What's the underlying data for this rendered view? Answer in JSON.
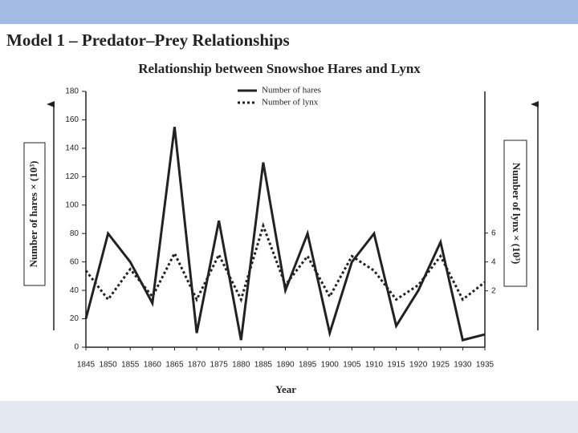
{
  "header": {
    "title": "Model 1 – Predator–Prey Relationships"
  },
  "chart_data": {
    "type": "line",
    "title": "Relationship between Snowshoe Hares and Lynx",
    "x_label": "Year",
    "y_label": "Number of hares × (10³)",
    "y2_label": "Number of lynx × (10³)",
    "x": [
      1845,
      1850,
      1855,
      1860,
      1865,
      1870,
      1875,
      1880,
      1885,
      1890,
      1895,
      1900,
      1905,
      1910,
      1915,
      1920,
      1925,
      1930,
      1935
    ],
    "series": [
      {
        "name": "Number of hares",
        "color": "#222222",
        "dash": "solid",
        "values": [
          20,
          80,
          60,
          31,
          155,
          10,
          89,
          5,
          130,
          40,
          80,
          10,
          60,
          80,
          15,
          40,
          74,
          5,
          9
        ]
      },
      {
        "name": "Number of lynx",
        "color": "#222222",
        "dash": "dotted",
        "axis": "y2",
        "values": [
          3.4,
          1.4,
          3.5,
          1.6,
          4.6,
          1.4,
          4.5,
          1.4,
          6.5,
          2.4,
          4.4,
          1.6,
          4.4,
          3.4,
          1.4,
          2.4,
          4.4,
          1.4,
          2.6
        ]
      }
    ],
    "xlim": [
      1845,
      1935
    ],
    "xticks": [
      1845,
      1850,
      1855,
      1860,
      1865,
      1870,
      1875,
      1880,
      1885,
      1890,
      1895,
      1900,
      1905,
      1910,
      1915,
      1920,
      1925,
      1930,
      1935
    ],
    "ylim": [
      0,
      180
    ],
    "yticks": [
      0,
      20,
      40,
      60,
      80,
      100,
      120,
      140,
      160,
      180
    ],
    "y2lim": [
      -1.9,
      15.8
    ],
    "y2ticks": [
      2,
      4,
      6
    ],
    "grid": false,
    "legend": "top-center"
  }
}
